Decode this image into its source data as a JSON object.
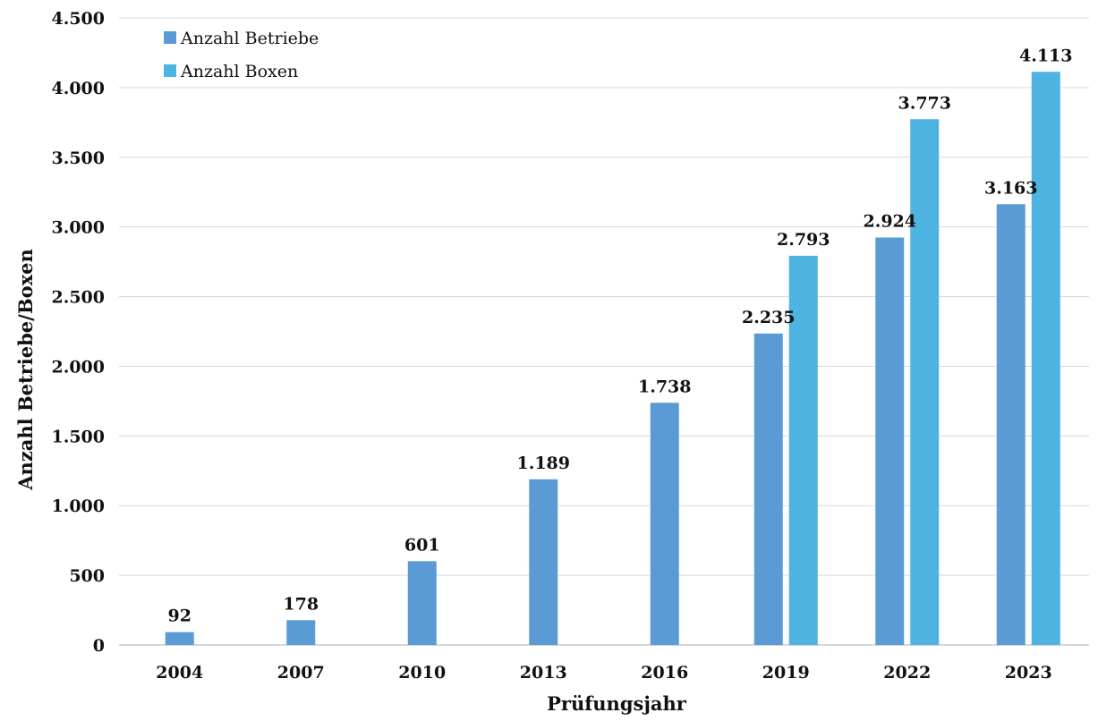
{
  "chart_data": {
    "type": "bar",
    "title": "",
    "xlabel": "Prüfungsjahr",
    "ylabel": "Anzahl Betriebe/Boxen",
    "categories": [
      "2004",
      "2007",
      "2010",
      "2013",
      "2016",
      "2019",
      "2022",
      "2023"
    ],
    "series": [
      {
        "name": "Anzahl Betriebe",
        "color": "#5b9bd5",
        "values": [
          92,
          178,
          601,
          1189,
          1738,
          2235,
          2924,
          3163
        ],
        "labels": [
          "92",
          "178",
          "601",
          "1.189",
          "1.738",
          "2.235",
          "2.924",
          "3.163"
        ]
      },
      {
        "name": "Anzahl Boxen",
        "color": "#4db3e0",
        "values": [
          null,
          null,
          null,
          null,
          null,
          2793,
          3773,
          4113
        ],
        "labels": [
          null,
          null,
          null,
          null,
          null,
          "2.793",
          "3.773",
          "4.113"
        ]
      }
    ],
    "ylim": [
      0,
      4500
    ],
    "yticks": [
      0,
      500,
      1000,
      1500,
      2000,
      2500,
      3000,
      3500,
      4000,
      4500
    ],
    "ytick_labels": [
      "0",
      "500",
      "1.000",
      "1.500",
      "2.000",
      "2.500",
      "3.000",
      "3.500",
      "4.000",
      "4.500"
    ],
    "grid": true,
    "legend_position": "top-left"
  }
}
